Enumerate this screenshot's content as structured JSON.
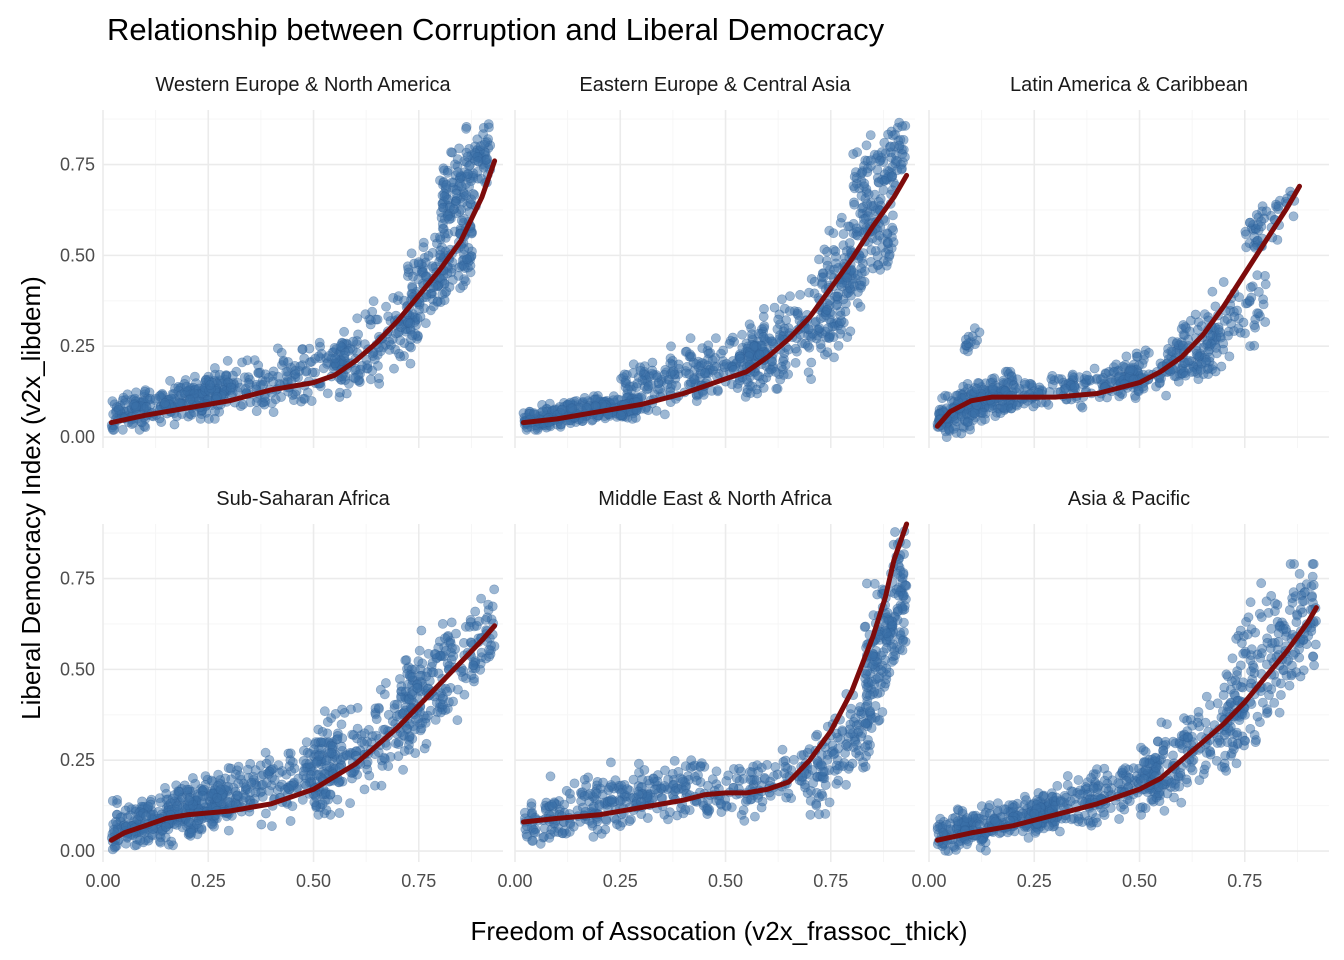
{
  "chart_data": {
    "type": "scatter",
    "title": "Relationship between Corruption and Liberal Democracy",
    "xlabel": "Freedom of Assocation (v2x_frassoc_thick)",
    "ylabel": "Liberal Democracy Index (v2x_libdem)",
    "xlim": [
      0,
      0.95
    ],
    "ylim": [
      -0.03,
      0.9
    ],
    "x_ticks": [
      "0.00",
      "0.25",
      "0.50",
      "0.75"
    ],
    "y_ticks": [
      "0.00",
      "0.25",
      "0.50",
      "0.75"
    ],
    "grid": true,
    "colors": {
      "points": "#3a6fa8",
      "smooth_line": "#7d0b0b"
    },
    "facets": [
      {
        "name": "Western Europe & North America",
        "smooth": {
          "x": [
            0.02,
            0.1,
            0.2,
            0.3,
            0.4,
            0.5,
            0.55,
            0.6,
            0.65,
            0.7,
            0.75,
            0.8,
            0.85,
            0.9,
            0.93
          ],
          "y": [
            0.04,
            0.06,
            0.08,
            0.1,
            0.13,
            0.15,
            0.17,
            0.21,
            0.26,
            0.32,
            0.39,
            0.46,
            0.54,
            0.66,
            0.76
          ]
        },
        "clusters": [
          {
            "x": [
              0.02,
              0.3
            ],
            "y": [
              0.02,
              0.17
            ],
            "n": 260
          },
          {
            "x": [
              0.2,
              0.58
            ],
            "y": [
              0.05,
              0.26
            ],
            "n": 200
          },
          {
            "x": [
              0.55,
              0.75
            ],
            "y": [
              0.1,
              0.4
            ],
            "n": 140
          },
          {
            "x": [
              0.72,
              0.88
            ],
            "y": [
              0.28,
              0.62
            ],
            "n": 180
          },
          {
            "x": [
              0.8,
              0.92
            ],
            "y": [
              0.55,
              0.87
            ],
            "n": 150
          }
        ]
      },
      {
        "name": "Eastern Europe & Central Asia",
        "smooth": {
          "x": [
            0.02,
            0.1,
            0.2,
            0.3,
            0.4,
            0.5,
            0.55,
            0.6,
            0.65,
            0.7,
            0.75,
            0.8,
            0.85,
            0.9,
            0.93
          ],
          "y": [
            0.04,
            0.05,
            0.07,
            0.09,
            0.12,
            0.16,
            0.18,
            0.22,
            0.27,
            0.33,
            0.41,
            0.49,
            0.58,
            0.66,
            0.72
          ]
        },
        "clusters": [
          {
            "x": [
              0.02,
              0.3
            ],
            "y": [
              0.02,
              0.12
            ],
            "n": 300
          },
          {
            "x": [
              0.25,
              0.6
            ],
            "y": [
              0.05,
              0.3
            ],
            "n": 260
          },
          {
            "x": [
              0.55,
              0.8
            ],
            "y": [
              0.12,
              0.45
            ],
            "n": 200
          },
          {
            "x": [
              0.72,
              0.9
            ],
            "y": [
              0.3,
              0.7
            ],
            "n": 180
          },
          {
            "x": [
              0.8,
              0.93
            ],
            "y": [
              0.6,
              0.87
            ],
            "n": 100
          }
        ]
      },
      {
        "name": "Latin America & Caribbean",
        "smooth": {
          "x": [
            0.02,
            0.05,
            0.1,
            0.15,
            0.2,
            0.3,
            0.4,
            0.5,
            0.55,
            0.6,
            0.65,
            0.7,
            0.75,
            0.8,
            0.85,
            0.88
          ],
          "y": [
            0.03,
            0.07,
            0.1,
            0.11,
            0.11,
            0.11,
            0.12,
            0.15,
            0.18,
            0.22,
            0.28,
            0.36,
            0.45,
            0.54,
            0.63,
            0.69
          ]
        },
        "clusters": [
          {
            "x": [
              0.02,
              0.2
            ],
            "y": [
              0.0,
              0.18
            ],
            "n": 220
          },
          {
            "x": [
              0.1,
              0.5
            ],
            "y": [
              0.06,
              0.2
            ],
            "n": 200
          },
          {
            "x": [
              0.45,
              0.7
            ],
            "y": [
              0.1,
              0.3
            ],
            "n": 150
          },
          {
            "x": [
              0.6,
              0.8
            ],
            "y": [
              0.15,
              0.45
            ],
            "n": 100
          },
          {
            "x": [
              0.75,
              0.87
            ],
            "y": [
              0.5,
              0.7
            ],
            "n": 50
          },
          {
            "x": [
              0.08,
              0.12
            ],
            "y": [
              0.22,
              0.3
            ],
            "n": 15
          }
        ]
      },
      {
        "name": "Sub-Saharan Africa",
        "smooth": {
          "x": [
            0.02,
            0.05,
            0.1,
            0.15,
            0.2,
            0.3,
            0.4,
            0.5,
            0.6,
            0.65,
            0.7,
            0.75,
            0.8,
            0.85,
            0.9,
            0.93
          ],
          "y": [
            0.03,
            0.05,
            0.07,
            0.09,
            0.1,
            0.11,
            0.13,
            0.17,
            0.24,
            0.29,
            0.34,
            0.4,
            0.46,
            0.52,
            0.58,
            0.62
          ]
        },
        "clusters": [
          {
            "x": [
              0.02,
              0.3
            ],
            "y": [
              0.0,
              0.2
            ],
            "n": 320
          },
          {
            "x": [
              0.2,
              0.55
            ],
            "y": [
              0.05,
              0.3
            ],
            "n": 260
          },
          {
            "x": [
              0.5,
              0.78
            ],
            "y": [
              0.1,
              0.5
            ],
            "n": 220
          },
          {
            "x": [
              0.7,
              0.93
            ],
            "y": [
              0.3,
              0.72
            ],
            "n": 180
          }
        ]
      },
      {
        "name": "Middle East & North Africa",
        "smooth": {
          "x": [
            0.02,
            0.1,
            0.2,
            0.3,
            0.4,
            0.45,
            0.5,
            0.55,
            0.6,
            0.65,
            0.7,
            0.75,
            0.8,
            0.85,
            0.88,
            0.9,
            0.93
          ],
          "y": [
            0.08,
            0.09,
            0.1,
            0.12,
            0.14,
            0.155,
            0.16,
            0.16,
            0.17,
            0.19,
            0.25,
            0.33,
            0.44,
            0.59,
            0.7,
            0.8,
            0.9
          ]
        },
        "clusters": [
          {
            "x": [
              0.02,
              0.45
            ],
            "y": [
              0.02,
              0.25
            ],
            "n": 300
          },
          {
            "x": [
              0.45,
              0.7
            ],
            "y": [
              0.07,
              0.3
            ],
            "n": 120
          },
          {
            "x": [
              0.7,
              0.85
            ],
            "y": [
              0.1,
              0.45
            ],
            "n": 120
          },
          {
            "x": [
              0.83,
              0.93
            ],
            "y": [
              0.35,
              0.88
            ],
            "n": 200
          }
        ]
      },
      {
        "name": "Asia & Pacific",
        "smooth": {
          "x": [
            0.02,
            0.1,
            0.2,
            0.3,
            0.4,
            0.5,
            0.55,
            0.6,
            0.65,
            0.7,
            0.75,
            0.8,
            0.85,
            0.9,
            0.92
          ],
          "y": [
            0.03,
            0.05,
            0.07,
            0.1,
            0.13,
            0.17,
            0.2,
            0.25,
            0.3,
            0.35,
            0.41,
            0.48,
            0.55,
            0.63,
            0.67
          ]
        },
        "clusters": [
          {
            "x": [
              0.02,
              0.3
            ],
            "y": [
              0.0,
              0.15
            ],
            "n": 280
          },
          {
            "x": [
              0.25,
              0.55
            ],
            "y": [
              0.05,
              0.25
            ],
            "n": 220
          },
          {
            "x": [
              0.5,
              0.75
            ],
            "y": [
              0.1,
              0.45
            ],
            "n": 200
          },
          {
            "x": [
              0.7,
              0.92
            ],
            "y": [
              0.3,
              0.79
            ],
            "n": 200
          }
        ]
      }
    ]
  }
}
